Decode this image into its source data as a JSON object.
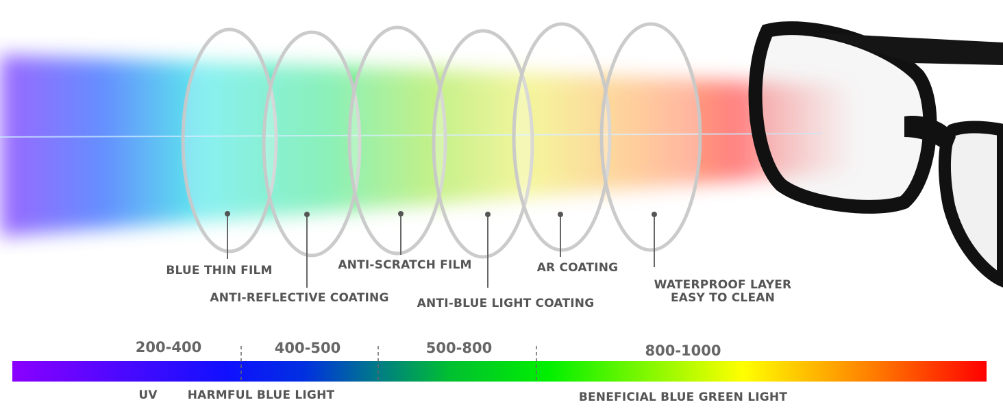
{
  "layers": [
    {
      "label": "BLUE THIN FILM"
    },
    {
      "label": "ANTI-REFLECTIVE COATING"
    },
    {
      "label": "ANTI-SCRATCH FILM"
    },
    {
      "label": "ANTI-BLUE LIGHT COATING"
    },
    {
      "label": "AR COATING"
    },
    {
      "label": [
        "WATERPROOF LAYER",
        "EASY TO CLEAN"
      ]
    }
  ],
  "spectrum": {
    "ranges": [
      "200-400",
      "400-500",
      "500-800",
      "800-1000"
    ],
    "labels": [
      "UV",
      "HARMFUL BLUE LIGHT",
      "BENEFICIAL BLUE GREEN LIGHT"
    ]
  }
}
